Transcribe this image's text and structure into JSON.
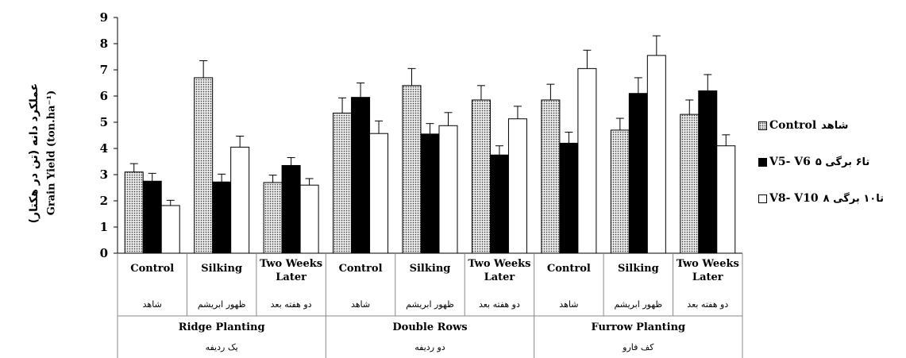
{
  "chart_data": {
    "type": "bar",
    "ylabel_fa": "عملکرد دانه (تن در هکتار)",
    "ylabel_en": "Grain Yield (ton.ha⁻¹)",
    "ylim": [
      0,
      9
    ],
    "yticks": [
      "0",
      "1",
      "2",
      "3",
      "4",
      "5",
      "6",
      "7",
      "8",
      "9"
    ],
    "groups": [
      {
        "en": "Ridge Planting",
        "fa": "یک ردیفه"
      },
      {
        "en": "Double Rows",
        "fa": "دو ردیفه"
      },
      {
        "en": "Furrow Planting",
        "fa": "کف فارو"
      }
    ],
    "categories": [
      {
        "en": [
          "Control"
        ],
        "fa": "شاهد"
      },
      {
        "en": [
          "Silking"
        ],
        "fa": "ظهور ابریشم"
      },
      {
        "en": [
          "Two Weeks",
          "Later"
        ],
        "fa": "دو هفته بعد"
      },
      {
        "en": [
          "Control"
        ],
        "fa": "شاهد"
      },
      {
        "en": [
          "Silking"
        ],
        "fa": "ظهور ابریشم"
      },
      {
        "en": [
          "Two Weeks",
          "Later"
        ],
        "fa": "دو هفته بعد"
      },
      {
        "en": [
          "Control"
        ],
        "fa": "شاهد"
      },
      {
        "en": [
          "Silking"
        ],
        "fa": "ظهور ابریشم"
      },
      {
        "en": [
          "Two Weeks",
          "Later"
        ],
        "fa": "دو هفته بعد"
      }
    ],
    "series": [
      {
        "name_en": "Control",
        "name_fa": "شاهد",
        "fill": "dotted",
        "values": [
          3.1,
          6.7,
          2.7,
          5.35,
          6.4,
          5.85,
          5.85,
          4.7,
          5.3
        ],
        "errors": [
          0.32,
          0.65,
          0.28,
          0.58,
          0.65,
          0.55,
          0.6,
          0.45,
          0.55
        ]
      },
      {
        "name_en": "V5- V6",
        "name_fa": "۵ تا۶ برگی",
        "fill": "#000000",
        "values": [
          2.75,
          2.72,
          3.35,
          5.95,
          4.55,
          3.75,
          4.2,
          6.1,
          6.2
        ],
        "errors": [
          0.3,
          0.3,
          0.3,
          0.55,
          0.4,
          0.35,
          0.42,
          0.6,
          0.62
        ]
      },
      {
        "name_en": "V8- V10",
        "name_fa": "۸ تا۱۰ برگی",
        "fill": "#ffffff",
        "values": [
          1.82,
          4.05,
          2.6,
          4.57,
          4.87,
          5.13,
          7.05,
          7.55,
          4.1
        ],
        "errors": [
          0.2,
          0.42,
          0.25,
          0.48,
          0.5,
          0.48,
          0.7,
          0.75,
          0.42
        ]
      }
    ]
  }
}
